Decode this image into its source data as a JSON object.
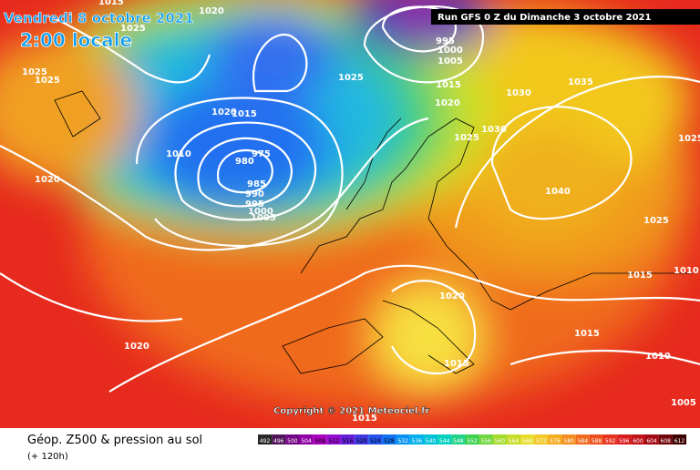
{
  "header": {
    "date": "Vendredi 8 octobre 2021",
    "time": "2:00 locale",
    "run": "Run GFS 0 Z du Dimanche 3 octobre 2021"
  },
  "copyright": "Copyright © 2021 Meteociel.fr",
  "footer": {
    "title": "Géop. Z500 & pression au sol",
    "lead": "(+ 120h)"
  },
  "colorbar": {
    "labels": [
      "492",
      "496",
      "500",
      "504",
      "508",
      "512",
      "516",
      "520",
      "524",
      "528",
      "532",
      "536",
      "540",
      "544",
      "548",
      "552",
      "556",
      "560",
      "564",
      "568",
      "572",
      "576",
      "580",
      "584",
      "588",
      "592",
      "596",
      "600",
      "604",
      "608",
      "612"
    ]
  },
  "isobar_labels": [
    "1020",
    "1015",
    "1025",
    "1025",
    "1025",
    "1020",
    "1010",
    "980",
    "975",
    "985",
    "990",
    "995",
    "1000",
    "1005",
    "1020",
    "1015",
    "1025",
    "995",
    "1000",
    "1005",
    "1015",
    "1020",
    "1025",
    "1030",
    "1035",
    "1040",
    "1025",
    "1025",
    "1015",
    "1010",
    "1020",
    "1015",
    "1015",
    "1010",
    "1020",
    "1005",
    "1015",
    "1030"
  ]
}
